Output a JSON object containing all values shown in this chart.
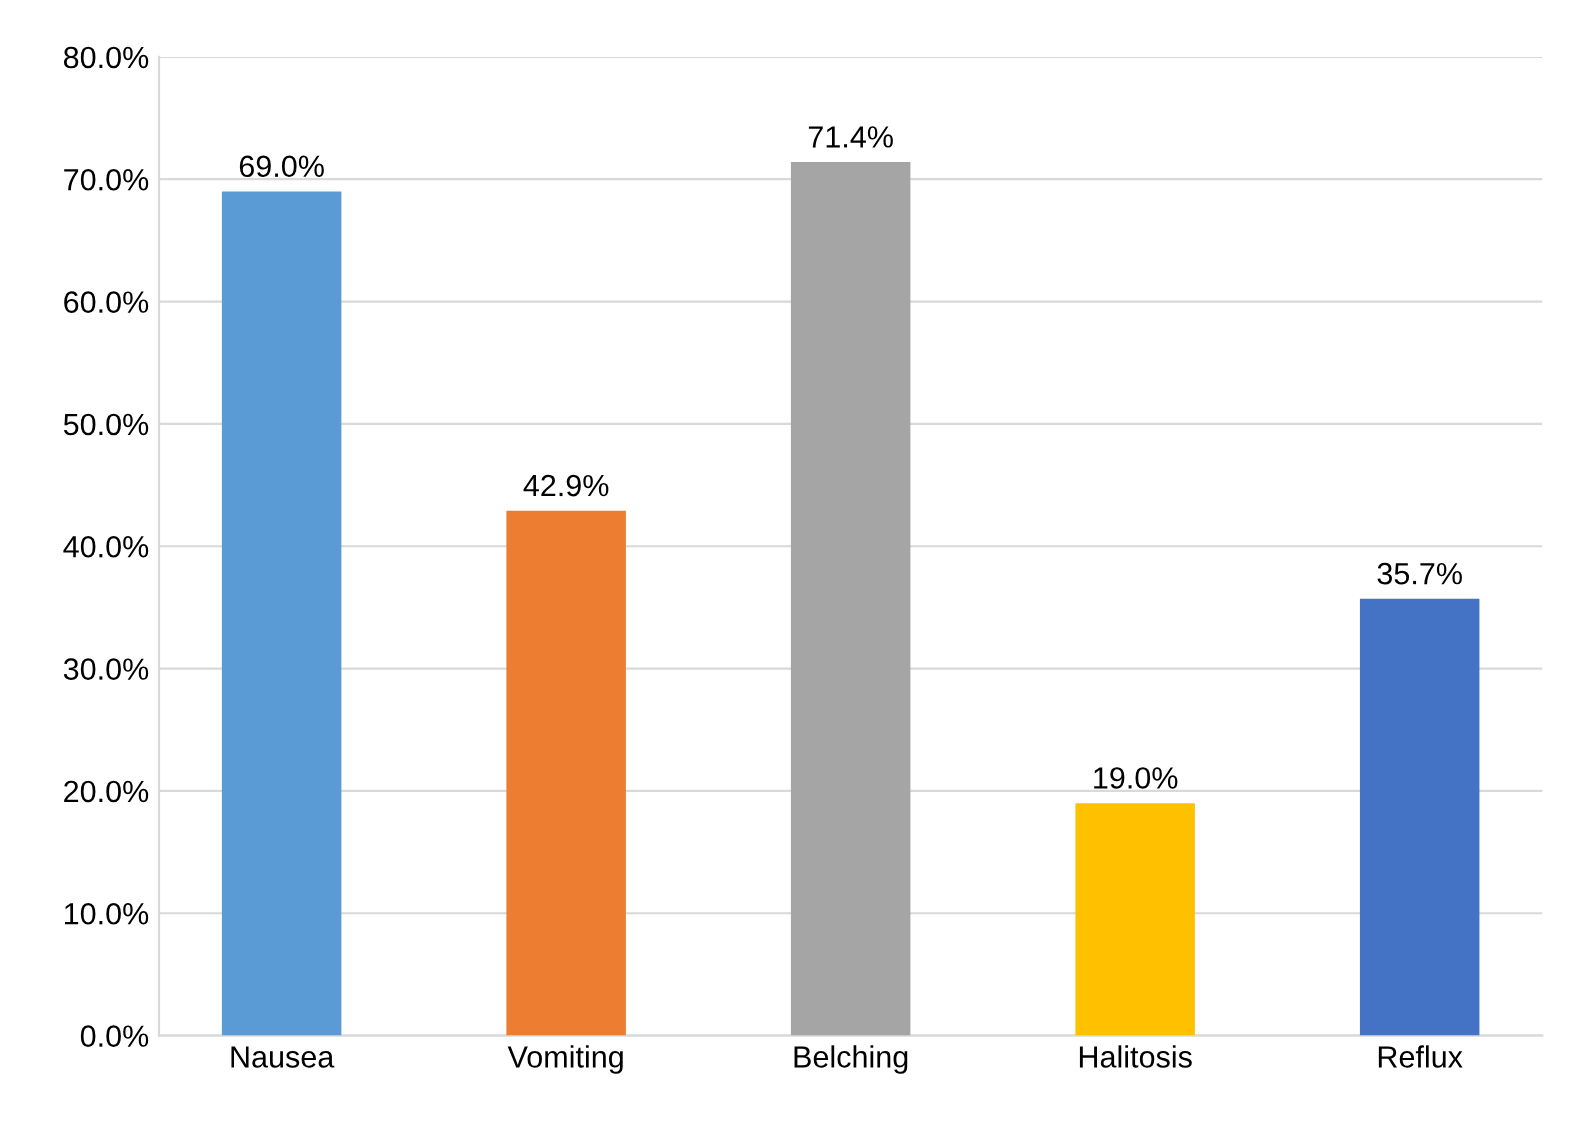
{
  "chart_data": {
    "type": "bar",
    "categories": [
      "Nausea",
      "Vomiting",
      "Belching",
      "Halitosis",
      "Reflux"
    ],
    "values": [
      69.0,
      42.9,
      71.4,
      19.0,
      35.7
    ],
    "colors": [
      "#5b9bd5",
      "#ed7d31",
      "#a5a5a5",
      "#ffc000",
      "#4472c4"
    ],
    "value_labels": [
      "69.0%",
      "42.9%",
      "71.4%",
      "19.0%",
      "35.7%"
    ],
    "ylim": [
      0,
      80
    ],
    "yticks": [
      {
        "value": 0,
        "label": "0.0%"
      },
      {
        "value": 10,
        "label": "10.0%"
      },
      {
        "value": 20,
        "label": "20.0%"
      },
      {
        "value": 30,
        "label": "30.0%"
      },
      {
        "value": 40,
        "label": "40.0%"
      },
      {
        "value": 50,
        "label": "50.0%"
      },
      {
        "value": 60,
        "label": "60.0%"
      },
      {
        "value": 70,
        "label": "70.0%"
      },
      {
        "value": 80,
        "label": "80.0%"
      }
    ],
    "grid": "y"
  }
}
